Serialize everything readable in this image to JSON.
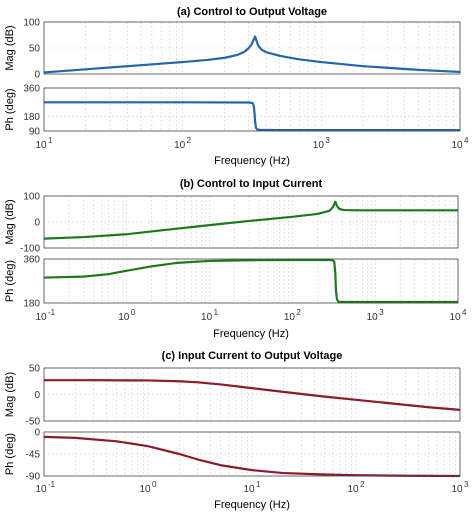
{
  "chart_data": [
    {
      "type": "line",
      "title": "(a) Control to Output Voltage",
      "xlabel": "Frequency  (Hz)",
      "xscale": "log",
      "xlim": [
        10,
        10000
      ],
      "xticks": [
        10,
        100,
        1000,
        10000
      ],
      "xtick_labels": [
        [
          "10",
          "1"
        ],
        [
          "10",
          "2"
        ],
        [
          "10",
          "3"
        ],
        [
          "10",
          "4"
        ]
      ],
      "color": "#2166ac",
      "panels": [
        {
          "ylabel": "Mag (dB)",
          "ylim": [
            0,
            100
          ],
          "yticks": [
            0,
            50,
            100
          ],
          "ytick_labels": [
            "0",
            "50",
            "100"
          ],
          "x": [
            10,
            20,
            50,
            100,
            150,
            200,
            250,
            280,
            300,
            315,
            325,
            333,
            341,
            350,
            370,
            400,
            500,
            700,
            1000,
            2000,
            5000,
            10000
          ],
          "y": [
            3,
            9,
            17,
            23,
            27,
            31,
            37,
            43,
            50,
            58,
            66,
            72,
            64,
            55,
            47,
            42,
            35,
            28,
            23,
            15,
            8,
            4
          ]
        },
        {
          "ylabel": "Ph (deg)",
          "ylim": [
            90,
            360
          ],
          "yticks": [
            90,
            180,
            360
          ],
          "ytick_labels": [
            "90",
            "180",
            "360"
          ],
          "x": [
            10,
            100,
            300,
            320,
            326,
            330,
            333,
            338,
            345,
            360,
            500,
            1000,
            10000
          ],
          "y": [
            270,
            270,
            269,
            265,
            245,
            200,
            150,
            110,
            100,
            97,
            96,
            96,
            96
          ]
        }
      ]
    },
    {
      "type": "line",
      "title": "(b) Control to Input Current",
      "xlabel": "Frequency  (Hz)",
      "xscale": "log",
      "xlim": [
        0.1,
        10000
      ],
      "xticks": [
        0.1,
        1,
        10,
        100,
        1000,
        10000
      ],
      "xtick_labels": [
        [
          "10",
          "-1"
        ],
        [
          "10",
          "0"
        ],
        [
          "10",
          "1"
        ],
        [
          "10",
          "2"
        ],
        [
          "10",
          "3"
        ],
        [
          "10",
          "4"
        ]
      ],
      "color": "#1a7a1a",
      "panels": [
        {
          "ylabel": "Mag (dB)",
          "ylim": [
            -100,
            100
          ],
          "yticks": [
            -100,
            0,
            100
          ],
          "ytick_labels": [
            "-100",
            "0",
            "100"
          ],
          "x": [
            0.1,
            0.3,
            1,
            3,
            10,
            30,
            100,
            200,
            280,
            310,
            330,
            345,
            370,
            420,
            600,
            1000,
            10000
          ],
          "y": [
            -64,
            -58,
            -47,
            -30,
            -12,
            4,
            20,
            31,
            43,
            58,
            78,
            62,
            50,
            46,
            45,
            45,
            45
          ]
        },
        {
          "ylabel": "Ph (deg)",
          "ylim": [
            180,
            360
          ],
          "yticks": [
            180,
            360
          ],
          "ytick_labels": [
            "180",
            "360"
          ],
          "x": [
            0.1,
            0.3,
            0.6,
            1,
            2,
            4,
            10,
            30,
            100,
            300,
            320,
            330,
            336,
            345,
            360,
            500,
            1000,
            10000
          ],
          "y": [
            284,
            288,
            298,
            312,
            330,
            344,
            352,
            355,
            356,
            356,
            350,
            300,
            230,
            195,
            185,
            184,
            184,
            184
          ]
        }
      ]
    },
    {
      "type": "line",
      "title": "(c) Input Current to Output Voltage",
      "xlabel": "Frequency  (Hz)",
      "xscale": "log",
      "xlim": [
        0.1,
        1000
      ],
      "xticks": [
        0.1,
        1,
        10,
        100,
        1000
      ],
      "xtick_labels": [
        [
          "10",
          "-1"
        ],
        [
          "10",
          "0"
        ],
        [
          "10",
          "1"
        ],
        [
          "10",
          "2"
        ],
        [
          "10",
          "3"
        ]
      ],
      "color": "#8b1a2b",
      "panels": [
        {
          "ylabel": "Mag (dB)",
          "ylim": [
            -50,
            50
          ],
          "yticks": [
            -50,
            0,
            50
          ],
          "ytick_labels": [
            "-50",
            "0",
            "50"
          ],
          "x": [
            0.1,
            0.3,
            1,
            2,
            3,
            5,
            10,
            20,
            50,
            100,
            200,
            500,
            1000
          ],
          "y": [
            27,
            27,
            26.5,
            25,
            23,
            19,
            12,
            5,
            -4,
            -10,
            -16,
            -24,
            -29
          ]
        },
        {
          "ylabel": "Ph (deg)",
          "ylim": [
            -90,
            0
          ],
          "yticks": [
            -90,
            -45,
            0
          ],
          "ytick_labels": [
            "-90",
            "-45",
            "0"
          ],
          "x": [
            0.1,
            0.2,
            0.5,
            1,
            2,
            3,
            5,
            10,
            20,
            50,
            100,
            300,
            1000
          ],
          "y": [
            -10,
            -12,
            -19,
            -29,
            -45,
            -56,
            -68,
            -78,
            -84,
            -87,
            -88.5,
            -89.5,
            -90
          ]
        }
      ]
    }
  ]
}
